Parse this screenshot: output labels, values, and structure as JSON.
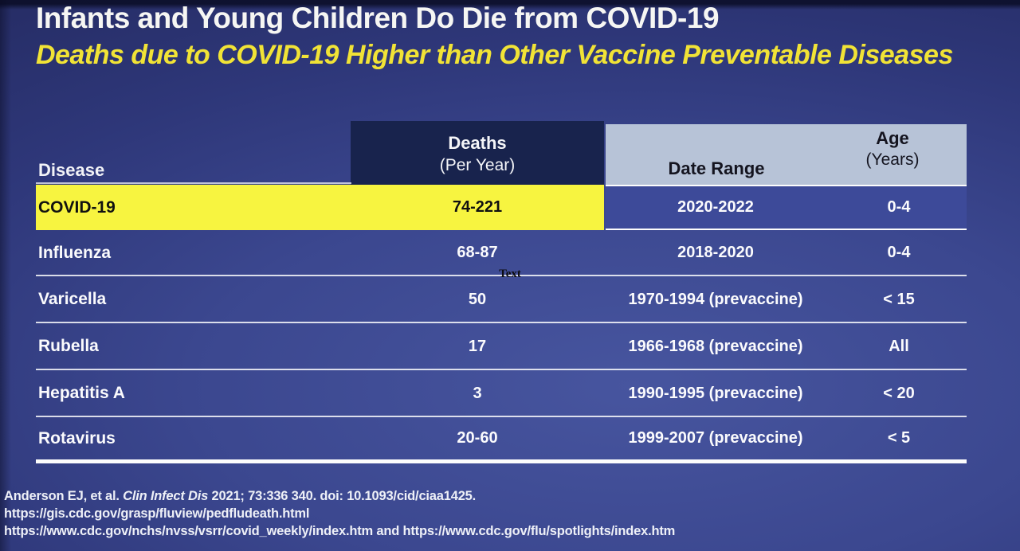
{
  "slide": {
    "title": "Infants and Young Children Do Die from COVID-19",
    "subtitle": "Deaths due to COVID-19 Higher than Other Vaccine Preventable Diseases"
  },
  "table": {
    "header": {
      "disease": "Disease",
      "deaths": "Deaths",
      "deaths_sub": "(Per Year)",
      "date_range": "Date Range",
      "age": "Age",
      "age_sub": "(Years)"
    },
    "rows": [
      {
        "disease": "COVID-19",
        "deaths": "74-221",
        "date_range": "2020-2022",
        "age": "0-4",
        "highlighted": true
      },
      {
        "disease": "Influenza",
        "deaths": "68-87",
        "date_range": "2018-2020",
        "age": "0-4",
        "highlighted": false
      },
      {
        "disease": "Varicella",
        "deaths": "50",
        "date_range": "1970-1994 (prevaccine)",
        "age": "< 15",
        "highlighted": false
      },
      {
        "disease": "Rubella",
        "deaths": "17",
        "date_range": "1966-1968 (prevaccine)",
        "age": "All",
        "highlighted": false
      },
      {
        "disease": "Hepatitis A",
        "deaths": "3",
        "date_range": "1990-1995 (prevaccine)",
        "age": "< 20",
        "highlighted": false
      },
      {
        "disease": "Rotavirus",
        "deaths": "20-60",
        "date_range": "1999-2007 (prevaccine)",
        "age": "< 5",
        "highlighted": false
      }
    ],
    "stray_text": "Text"
  },
  "footer": {
    "citation": {
      "prefix": "Anderson EJ, et al. ",
      "journal": "Clin Infect Dis",
      "suffix": " 2021; 73:336 340. doi: 10.1093/cid/ciaa1425."
    },
    "link1": "https://gis.cdc.gov/grasp/fluview/pedfludeath.html",
    "link2": "https://www.cdc.gov/nchs/nvss/vsrr/covid_weekly/index.htm and https://www.cdc.gov/flu/spotlights/index.htm"
  },
  "colors": {
    "background_dark": "#242a5e",
    "background_light": "#47559f",
    "title_text": "#f6f6f3",
    "subtitle_yellow": "#f1e336",
    "header_navy": "#18234d",
    "header_light": "#b7c3d7",
    "highlight_yellow": "#f7f440",
    "highlight_rightbox_blue": "#3d4a99",
    "row_text": "#fbfbfd"
  }
}
